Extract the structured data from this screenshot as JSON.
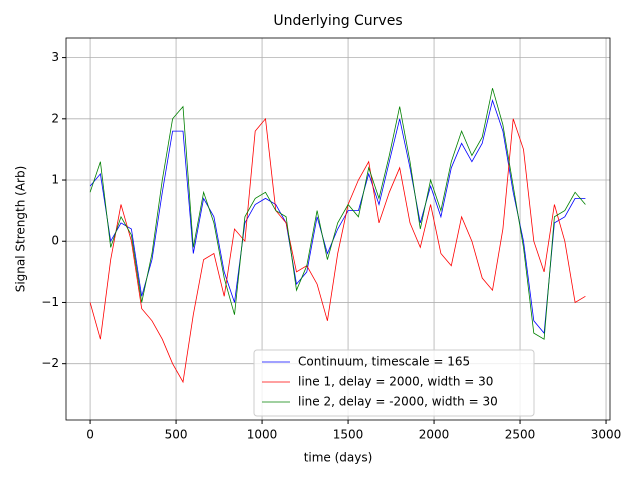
{
  "chart_data": {
    "type": "line",
    "title": "Underlying Curves",
    "x_label": "time (days)",
    "y_label": "Signal Strength (Arb)",
    "x": [
      0,
      60,
      120,
      180,
      240,
      300,
      360,
      420,
      480,
      540,
      600,
      660,
      720,
      780,
      840,
      900,
      960,
      1020,
      1080,
      1140,
      1200,
      1260,
      1320,
      1380,
      1440,
      1500,
      1560,
      1620,
      1680,
      1740,
      1800,
      1860,
      1920,
      1980,
      2040,
      2100,
      2160,
      2220,
      2280,
      2340,
      2400,
      2460,
      2520,
      2580,
      2640,
      2700,
      2760,
      2820,
      2880
    ],
    "series": [
      {
        "name": "Continuum, timescale = 165",
        "color": "#0000ff",
        "values": [
          0.9,
          1.1,
          0.0,
          0.3,
          0.2,
          -0.9,
          -0.3,
          0.8,
          1.8,
          1.8,
          -0.2,
          0.7,
          0.4,
          -0.5,
          -1.0,
          0.3,
          0.6,
          0.7,
          0.6,
          0.3,
          -0.7,
          -0.5,
          0.4,
          -0.2,
          0.2,
          0.5,
          0.5,
          1.1,
          0.6,
          1.3,
          2.0,
          1.2,
          0.3,
          0.9,
          0.4,
          1.2,
          1.6,
          1.3,
          1.6,
          2.3,
          1.8,
          0.8,
          0.0,
          -1.3,
          -1.5,
          0.3,
          0.4,
          0.7,
          0.7
        ]
      },
      {
        "name": "line 1, delay = 2000, width = 30",
        "color": "#ff0000",
        "values": [
          -1.0,
          -1.6,
          -0.3,
          0.6,
          0.0,
          -1.1,
          -1.3,
          -1.6,
          -2.0,
          -2.3,
          -1.2,
          -0.3,
          -0.2,
          -0.9,
          0.2,
          0.0,
          1.8,
          2.0,
          0.5,
          0.3,
          -0.5,
          -0.4,
          -0.7,
          -1.3,
          -0.2,
          0.6,
          1.0,
          1.3,
          0.3,
          0.8,
          1.2,
          0.3,
          -0.1,
          0.6,
          -0.2,
          -0.4,
          0.4,
          0.0,
          -0.6,
          -0.8,
          0.2,
          2.0,
          1.5,
          0.0,
          -0.5,
          0.6,
          0.0,
          -1.0,
          -0.9
        ]
      },
      {
        "name": "line 2, delay = -2000, width = 30",
        "color": "#008000",
        "values": [
          0.8,
          1.3,
          -0.1,
          0.4,
          0.1,
          -1.0,
          -0.2,
          1.0,
          2.0,
          2.2,
          -0.1,
          0.8,
          0.3,
          -0.6,
          -1.2,
          0.4,
          0.7,
          0.8,
          0.5,
          0.4,
          -0.8,
          -0.4,
          0.5,
          -0.3,
          0.3,
          0.6,
          0.4,
          1.2,
          0.7,
          1.4,
          2.2,
          1.3,
          0.2,
          1.0,
          0.5,
          1.3,
          1.8,
          1.4,
          1.7,
          2.5,
          1.9,
          0.9,
          -0.1,
          -1.5,
          -1.6,
          0.4,
          0.5,
          0.8,
          0.6
        ]
      }
    ],
    "xlim": [
      -140,
      3023
    ],
    "ylim": [
      -2.92,
      3.32
    ],
    "xticks": [
      0,
      500,
      1000,
      1500,
      2000,
      2500,
      3000
    ],
    "yticks": [
      {
        "value": -2,
        "label": "−2"
      },
      {
        "value": -1,
        "label": "−1"
      },
      0,
      1,
      2,
      3
    ],
    "grid": true,
    "legend": "lower center"
  }
}
